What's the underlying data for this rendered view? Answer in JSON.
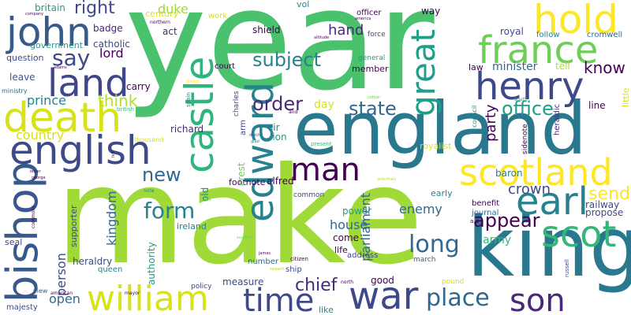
{
  "background": "#ffffff",
  "palette": [
    "#440154",
    "#482878",
    "#3e4989",
    "#31688e",
    "#26828e",
    "#1f9e89",
    "#35b779",
    "#6ece58",
    "#b5de2b",
    "#fde725"
  ],
  "words": [
    {
      "text": "year",
      "color": "#4ac16d"
    },
    {
      "text": "make",
      "color": "#a0da39"
    },
    {
      "text": "england",
      "color": "#2a788e"
    },
    {
      "text": "king",
      "color": "#2a788e"
    },
    {
      "text": "land",
      "color": "#3f4788"
    },
    {
      "text": "john",
      "color": "#38598c"
    },
    {
      "text": "death",
      "color": "#d8e219"
    },
    {
      "text": "english",
      "color": "#3e4989"
    },
    {
      "text": "bishop",
      "color": "#38598c"
    },
    {
      "text": "william",
      "color": "#d8e219"
    },
    {
      "text": "castle",
      "color": "#2fb47c"
    },
    {
      "text": "edward",
      "color": "#26828e"
    },
    {
      "text": "henry",
      "color": "#3e4989"
    },
    {
      "text": "hold",
      "color": "#fde725"
    },
    {
      "text": "france",
      "color": "#6ece58"
    },
    {
      "text": "scotland",
      "color": "#fde725"
    },
    {
      "text": "earl",
      "color": "#26828e"
    },
    {
      "text": "scot",
      "color": "#35b779"
    },
    {
      "text": "son",
      "color": "#482878"
    },
    {
      "text": "war",
      "color": "#3e4989"
    },
    {
      "text": "time",
      "color": "#3e4989"
    },
    {
      "text": "great",
      "color": "#1f9e89"
    },
    {
      "text": "man",
      "color": "#440154"
    },
    {
      "text": "place",
      "color": "#31688e"
    },
    {
      "text": "subject",
      "color": "#26828e"
    },
    {
      "text": "say",
      "color": "#3e4989"
    },
    {
      "text": "right",
      "color": "#3e4989"
    },
    {
      "text": "long",
      "color": "#31688e"
    },
    {
      "text": "new",
      "color": "#31688e"
    },
    {
      "text": "form",
      "color": "#26828e"
    },
    {
      "text": "state",
      "color": "#31688e"
    },
    {
      "text": "order",
      "color": "#482878"
    },
    {
      "text": "office",
      "color": "#1f9e89"
    },
    {
      "text": "appear",
      "color": "#440154"
    },
    {
      "text": "know",
      "color": "#440154"
    },
    {
      "text": "send",
      "color": "#fde725"
    },
    {
      "text": "crown",
      "color": "#3e4989"
    },
    {
      "text": "chief",
      "color": "#482878"
    },
    {
      "text": "lord",
      "color": "#440154"
    },
    {
      "text": "think",
      "color": "#b5de2b"
    },
    {
      "text": "prince",
      "color": "#26828e"
    },
    {
      "text": "hand",
      "color": "#482878"
    },
    {
      "text": "country",
      "color": "#d8e219"
    },
    {
      "text": "house",
      "color": "#31688e"
    },
    {
      "text": "open",
      "color": "#31688e"
    },
    {
      "text": "party",
      "color": "#440154"
    },
    {
      "text": "parliament",
      "color": "#31688e"
    },
    {
      "text": "enemy",
      "color": "#31688e"
    },
    {
      "text": "kingdom",
      "color": "#31688e"
    },
    {
      "text": "person",
      "color": "#3e4989"
    },
    {
      "text": "duke",
      "color": "#a0da39"
    },
    {
      "text": "minister",
      "color": "#31688e"
    },
    {
      "text": "army",
      "color": "#35b779"
    },
    {
      "text": "power",
      "color": "#1f9e89"
    },
    {
      "text": "good",
      "color": "#440154"
    },
    {
      "text": "day",
      "color": "#d8e219"
    },
    {
      "text": "catholic",
      "color": "#3e4989"
    },
    {
      "text": "britain",
      "color": "#1f9e89"
    },
    {
      "text": "royal",
      "color": "#3e4989"
    },
    {
      "text": "follow",
      "color": "#26828e"
    },
    {
      "text": "cromwell",
      "color": "#31688e"
    },
    {
      "text": "act",
      "color": "#482878"
    },
    {
      "text": "century",
      "color": "#d8e219"
    },
    {
      "text": "badge",
      "color": "#482878"
    },
    {
      "text": "government",
      "color": "#1f9e89"
    },
    {
      "text": "question",
      "color": "#3e4989"
    },
    {
      "text": "carry",
      "color": "#440154"
    },
    {
      "text": "leave",
      "color": "#38598c"
    },
    {
      "text": "richard",
      "color": "#482878"
    },
    {
      "text": "sir",
      "color": "#26828e"
    },
    {
      "text": "lion",
      "color": "#1f9e89"
    },
    {
      "text": "footnote",
      "color": "#440154"
    },
    {
      "text": "crest",
      "color": "#6ece58"
    },
    {
      "text": "alfred",
      "color": "#440154"
    },
    {
      "text": "ireland",
      "color": "#26828e"
    },
    {
      "text": "authority",
      "color": "#1f9e89"
    },
    {
      "text": "supporter",
      "color": "#3e4989"
    },
    {
      "text": "heraldry",
      "color": "#3e4989"
    },
    {
      "text": "queen",
      "color": "#26828e"
    },
    {
      "text": "measure",
      "color": "#3e4989"
    },
    {
      "text": "number",
      "color": "#31688e"
    },
    {
      "text": "come",
      "color": "#440154"
    },
    {
      "text": "life",
      "color": "#440154"
    },
    {
      "text": "address",
      "color": "#3e4989"
    },
    {
      "text": "baron",
      "color": "#26828e"
    },
    {
      "text": "railway",
      "color": "#3e4989"
    },
    {
      "text": "propose",
      "color": "#3e4989"
    },
    {
      "text": "benefit",
      "color": "#440154"
    },
    {
      "text": "journal",
      "color": "#31688e"
    },
    {
      "text": "line",
      "color": "#440154"
    },
    {
      "text": "tell",
      "color": "#b5de2b"
    },
    {
      "text": "law",
      "color": "#440154"
    },
    {
      "text": "member",
      "color": "#440154"
    },
    {
      "text": "general",
      "color": "#1f9e89"
    },
    {
      "text": "royalist",
      "color": "#d8e219"
    },
    {
      "text": "early",
      "color": "#26828e"
    },
    {
      "text": "way",
      "color": "#440154"
    },
    {
      "text": "vol",
      "color": "#26828e"
    },
    {
      "text": "officer",
      "color": "#440154"
    },
    {
      "text": "shield",
      "color": "#440154"
    },
    {
      "text": "work",
      "color": "#d8e219"
    },
    {
      "text": "court",
      "color": "#440154"
    },
    {
      "text": "arm",
      "color": "#3e4989"
    },
    {
      "text": "charles",
      "color": "#3e4989"
    },
    {
      "text": "force",
      "color": "#3e4989"
    },
    {
      "text": "common",
      "color": "#3e4989"
    },
    {
      "text": "seal",
      "color": "#3e4989"
    },
    {
      "text": "majesty",
      "color": "#3e4989"
    },
    {
      "text": "view",
      "color": "#31688e"
    },
    {
      "text": "old",
      "color": "#26828e"
    },
    {
      "text": "ship",
      "color": "#3e4989"
    },
    {
      "text": "policy",
      "color": "#3e4989"
    },
    {
      "text": "like",
      "color": "#26828e"
    },
    {
      "text": "pound",
      "color": "#d8e219"
    },
    {
      "text": "march",
      "color": "#31688e"
    },
    {
      "text": "citizen",
      "color": "#440154"
    },
    {
      "text": "little",
      "color": "#d8e219"
    },
    {
      "text": "heraldic",
      "color": "#482878"
    },
    {
      "text": "sidenote",
      "color": "#440154"
    },
    {
      "text": "council",
      "color": "#26828e"
    },
    {
      "text": "present",
      "color": "#35b779"
    },
    {
      "text": "thousand",
      "color": "#d8e219"
    },
    {
      "text": "ministry",
      "color": "#31688e"
    },
    {
      "text": "spain",
      "color": "#26828e"
    },
    {
      "text": "british",
      "color": "#35b779"
    },
    {
      "text": "commons",
      "color": "#440154"
    },
    {
      "text": "mayor",
      "color": "#440154"
    },
    {
      "text": "american",
      "color": "#440154"
    },
    {
      "text": "russell",
      "color": "#3e4989"
    },
    {
      "text": "south",
      "color": "#1f9e89"
    },
    {
      "text": "northern",
      "color": "#440154"
    },
    {
      "text": "company",
      "color": "#440154"
    },
    {
      "text": "adams",
      "color": "#440154"
    },
    {
      "text": "america",
      "color": "#440154"
    },
    {
      "text": "altitude",
      "color": "#440154"
    },
    {
      "text": "cotton",
      "color": "#6ece58"
    },
    {
      "text": "london",
      "color": "#fde725"
    },
    {
      "text": "letter",
      "color": "#440154"
    },
    {
      "text": "george",
      "color": "#440154"
    },
    {
      "text": "north",
      "color": "#440154"
    },
    {
      "text": "a.d",
      "color": "#440154"
    },
    {
      "text": "southern",
      "color": "#6ece58"
    },
    {
      "text": "note",
      "color": "#26828e"
    },
    {
      "text": "alderman",
      "color": "#b5de2b"
    },
    {
      "text": "james",
      "color": "#440154"
    },
    {
      "text": "seward",
      "color": "#b5de2b"
    },
    {
      "text": "hill",
      "color": "#440154"
    },
    {
      "text": "rule",
      "color": "#6ece58"
    },
    {
      "text": "and",
      "color": "#440154"
    },
    {
      "text": "dutch",
      "color": "#3e4989"
    },
    {
      "text": "glad",
      "color": "#26828e"
    }
  ]
}
